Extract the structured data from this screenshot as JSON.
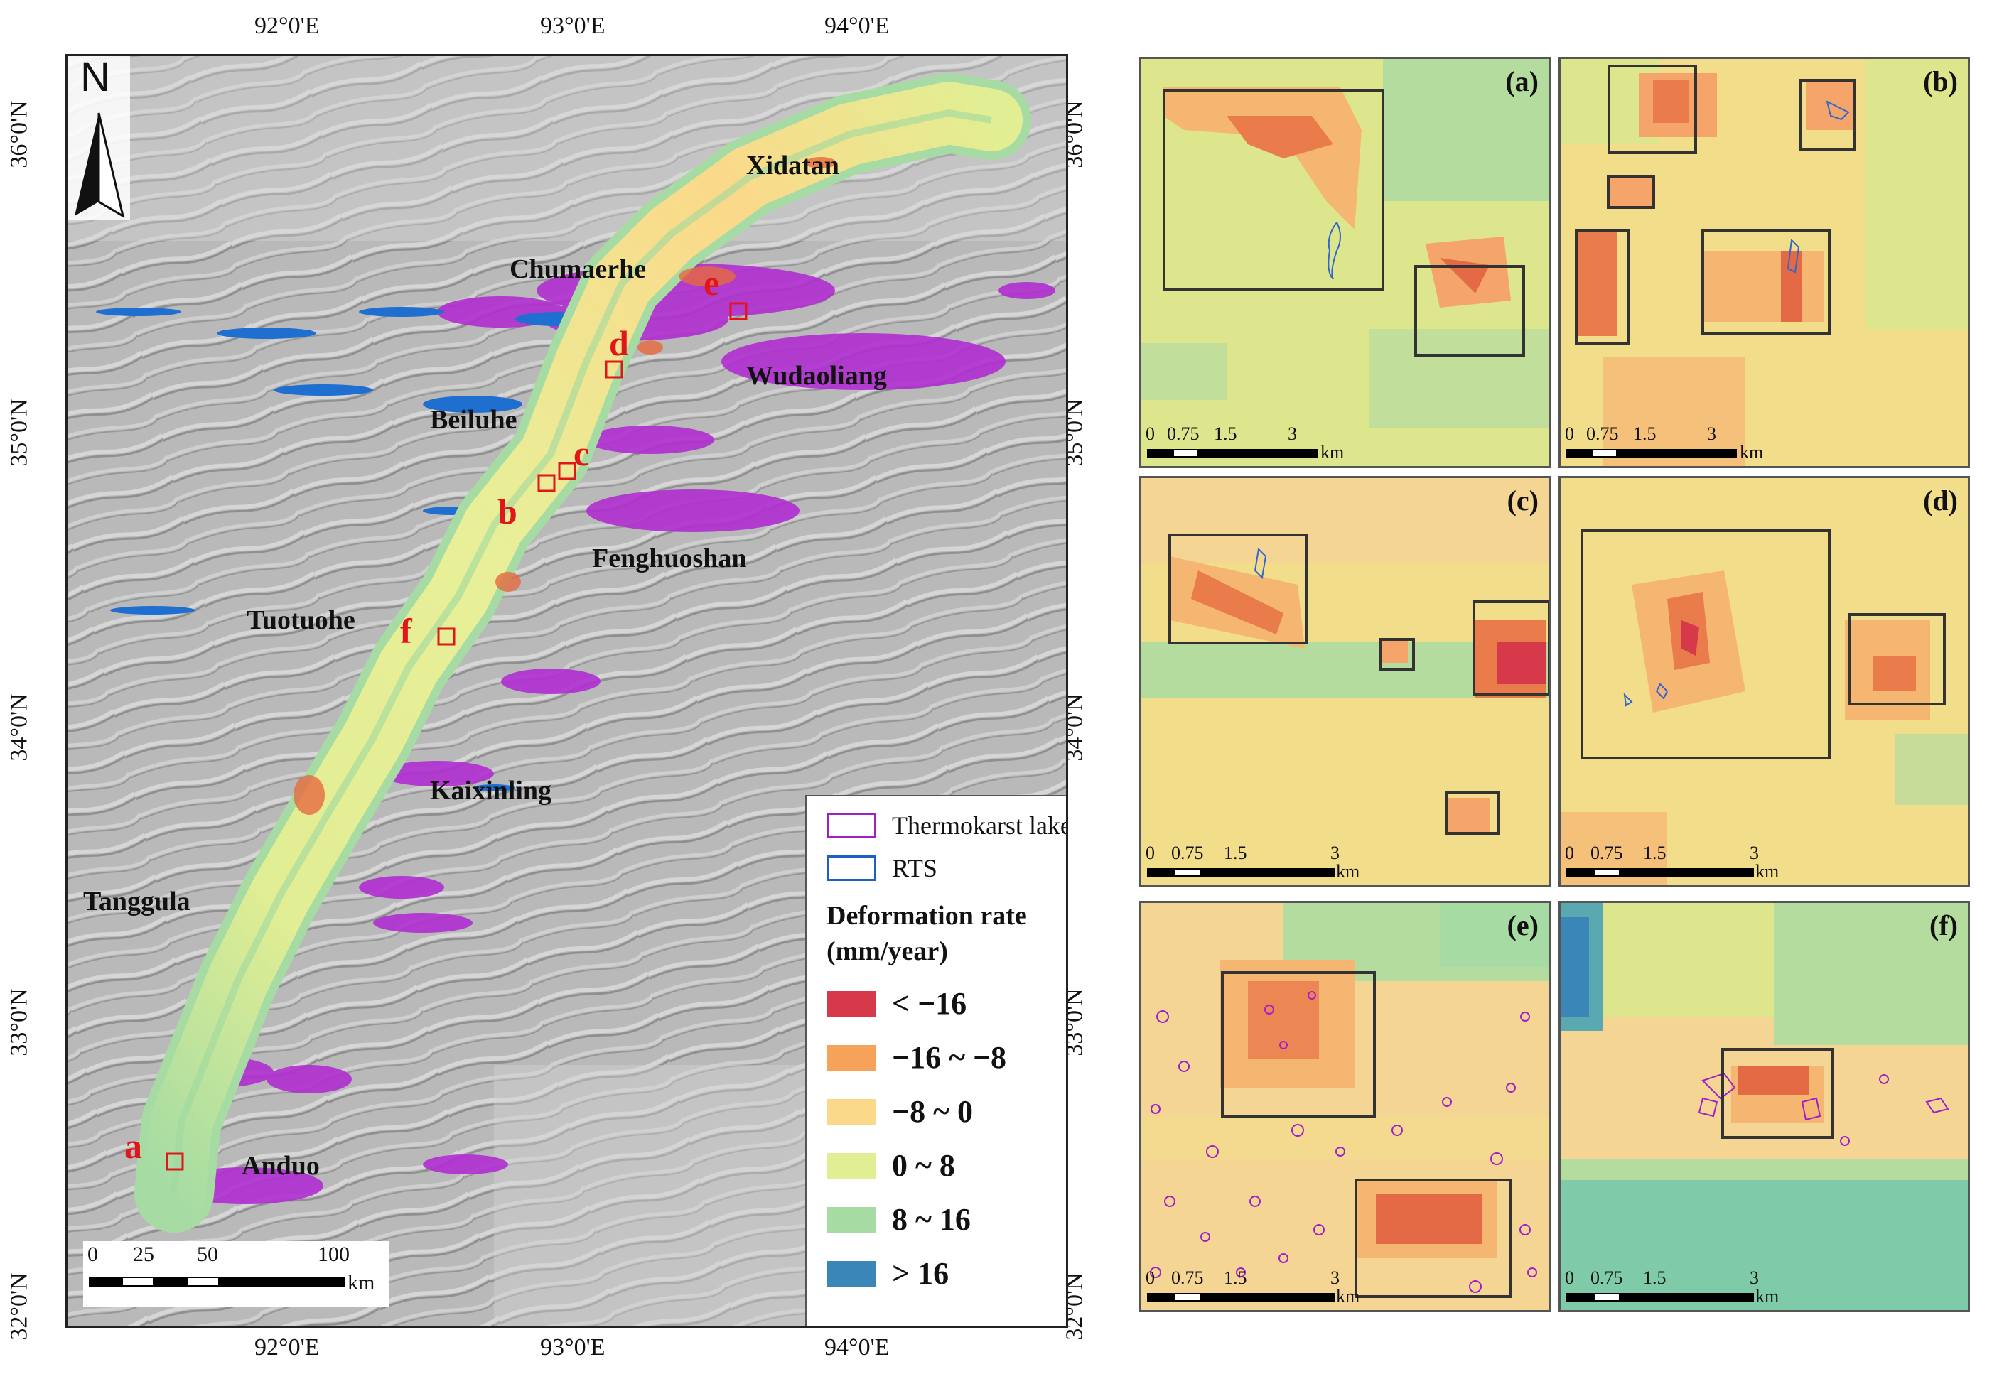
{
  "main_map": {
    "lon_ticks": [
      "92°0'E",
      "93°0'E",
      "94°0'E"
    ],
    "lat_ticks": [
      "36°0'N",
      "35°0'N",
      "34°0'N",
      "33°0'N",
      "32°0'N"
    ],
    "north_label": "N",
    "places": [
      "Xidatan",
      "Chumaerhe",
      "Wudaoliang",
      "Beiluhe",
      "Fenghuoshan",
      "Tuotuohe",
      "Kaixinling",
      "Tanggula",
      "Anduo"
    ],
    "site_letters": [
      "a",
      "b",
      "c",
      "d",
      "e",
      "f"
    ],
    "scalebar": {
      "ticks": [
        "0",
        "25",
        "50",
        "100"
      ],
      "unit": "km"
    }
  },
  "legend": {
    "items": [
      {
        "label": "Thermokarst lake",
        "outline_color": "#a020c8"
      },
      {
        "label": "RTS",
        "outline_color": "#1f5fc0"
      }
    ],
    "title_line1": "Deformation rate",
    "title_line2": "(mm/year)",
    "classes": [
      {
        "label": "< −16",
        "color": "#d63a4a"
      },
      {
        "label": "−16 ~ −8",
        "color": "#f7a25a"
      },
      {
        "label": "−8 ~ 0",
        "color": "#fbd98a"
      },
      {
        "label": "0 ~ 8",
        "color": "#e2ee93"
      },
      {
        "label": "8 ~ 16",
        "color": "#a6dca3"
      },
      {
        "label": "> 16",
        "color": "#3b86b8"
      }
    ]
  },
  "panels": [
    {
      "label": "(a)",
      "scale_ticks": [
        "0",
        "0.75",
        "1.5",
        "3"
      ],
      "unit": "km"
    },
    {
      "label": "(b)",
      "scale_ticks": [
        "0",
        "0.75",
        "1.5",
        "3"
      ],
      "unit": "km"
    },
    {
      "label": "(c)",
      "scale_ticks": [
        "0",
        "0.75",
        "1.5",
        "3"
      ],
      "unit": "km"
    },
    {
      "label": "(d)",
      "scale_ticks": [
        "0",
        "0.75",
        "1.5",
        "3"
      ],
      "unit": "km"
    },
    {
      "label": "(e)",
      "scale_ticks": [
        "0",
        "0.75",
        "1.5",
        "3"
      ],
      "unit": "km"
    },
    {
      "label": "(f)",
      "scale_ticks": [
        "0",
        "0.75",
        "1.5",
        "3"
      ],
      "unit": "km"
    }
  ],
  "colors": {
    "site_marker": "#e0161b",
    "box_outline": "#333333"
  }
}
